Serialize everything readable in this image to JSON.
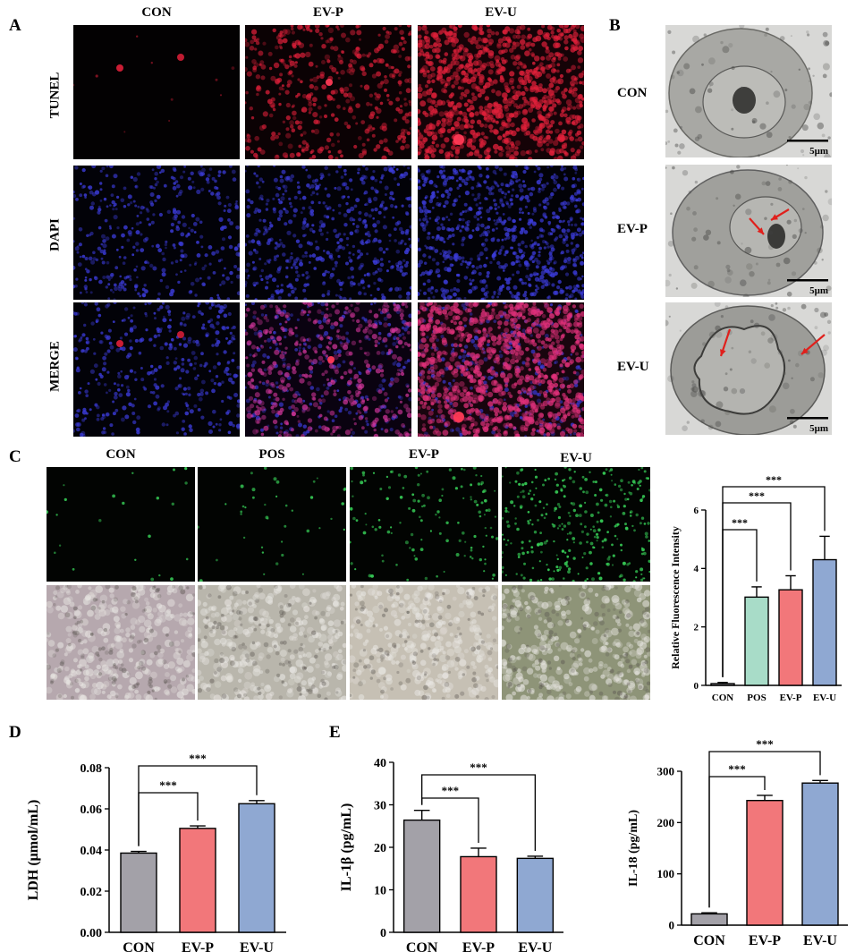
{
  "panels": {
    "A": {
      "letter": "A",
      "columns": [
        "CON",
        "EV-P",
        "EV-U"
      ],
      "rows": [
        "TUNEL",
        "DAPI",
        "MERGE"
      ]
    },
    "B": {
      "letter": "B",
      "rows": [
        "CON",
        "EV-P",
        "EV-U"
      ],
      "scale_bar": "5μm"
    },
    "C": {
      "letter": "C",
      "columns": [
        "CON",
        "POS",
        "EV-P",
        "EV-U"
      ]
    },
    "D": {
      "letter": "D"
    },
    "E": {
      "letter": "E"
    }
  },
  "colors": {
    "CON": "#a3a1a8",
    "POS": "#a8dcc8",
    "EV-P": "#f2777a",
    "EV-U": "#8fa8d2",
    "tunel": "#e0203a",
    "dapi": "#3b3bd8",
    "calcein": "#39d65a",
    "arrow": "#e0201c"
  },
  "significance": "***",
  "chart_data": [
    {
      "id": "C-chart",
      "type": "bar",
      "categories": [
        "CON",
        "POS",
        "EV-P",
        "EV-U"
      ],
      "values": [
        0.06,
        3.02,
        3.27,
        4.3
      ],
      "errors": [
        0.04,
        0.35,
        0.48,
        0.8
      ],
      "ylabel": "Relative Fluorescence Intensity",
      "ylim": [
        0,
        6
      ],
      "yticks": [
        "0",
        "2",
        "4",
        "6"
      ],
      "comparisons": [
        {
          "from": 0,
          "to": 1,
          "label": "***"
        },
        {
          "from": 0,
          "to": 2,
          "label": "***"
        },
        {
          "from": 0,
          "to": 3,
          "label": "***"
        }
      ]
    },
    {
      "id": "D-chart",
      "type": "bar",
      "categories": [
        "CON",
        "EV-P",
        "EV-U"
      ],
      "values": [
        0.0385,
        0.0505,
        0.0625
      ],
      "errors": [
        0.0008,
        0.0012,
        0.0015
      ],
      "ylabel": "LDH (μmol/mL)",
      "ylim": [
        0,
        0.08
      ],
      "yticks": [
        "0.00",
        "0.02",
        "0.04",
        "0.06",
        "0.08"
      ],
      "comparisons": [
        {
          "from": 0,
          "to": 1,
          "label": "***"
        },
        {
          "from": 0,
          "to": 2,
          "label": "***"
        }
      ]
    },
    {
      "id": "E1-chart",
      "type": "bar",
      "categories": [
        "CON",
        "EV-P",
        "EV-U"
      ],
      "values": [
        26.4,
        17.8,
        17.4
      ],
      "errors": [
        2.3,
        2.0,
        0.5
      ],
      "ylabel": "IL-1β (pg/mL)",
      "ylim": [
        0,
        40
      ],
      "yticks": [
        "0",
        "10",
        "20",
        "30",
        "40"
      ],
      "comparisons": [
        {
          "from": 0,
          "to": 1,
          "label": "***"
        },
        {
          "from": 0,
          "to": 2,
          "label": "***"
        }
      ]
    },
    {
      "id": "E2-chart",
      "type": "bar",
      "categories": [
        "CON",
        "EV-P",
        "EV-U"
      ],
      "values": [
        22,
        243,
        277
      ],
      "errors": [
        2,
        10,
        5
      ],
      "ylabel": "IL-18 (pg/mL)",
      "ylim": [
        0,
        300
      ],
      "yticks": [
        "0",
        "100",
        "200",
        "300"
      ],
      "comparisons": [
        {
          "from": 0,
          "to": 1,
          "label": "***"
        },
        {
          "from": 0,
          "to": 2,
          "label": "***"
        }
      ]
    }
  ]
}
